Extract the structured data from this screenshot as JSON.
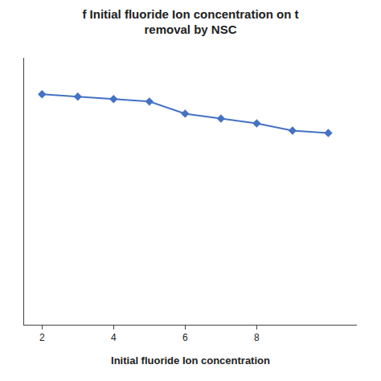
{
  "chart_data": {
    "type": "line",
    "title": "f Initial fluoride Ion concentration on t\nremoval by NSC",
    "xlabel": "Initial fluoride Ion concentration",
    "x": [
      2,
      3,
      4,
      5,
      6,
      7,
      8,
      9,
      10
    ],
    "values": [
      95,
      94,
      93,
      92,
      87,
      85,
      83,
      80,
      79
    ],
    "color": "#4472C4",
    "marker": "diamond",
    "line_style": "solid",
    "xlim": [
      1.5,
      10.8
    ],
    "xticks": [
      2,
      4,
      6,
      8
    ],
    "ylim": [
      0,
      110
    ],
    "grid": false,
    "tick_labels": "x"
  }
}
